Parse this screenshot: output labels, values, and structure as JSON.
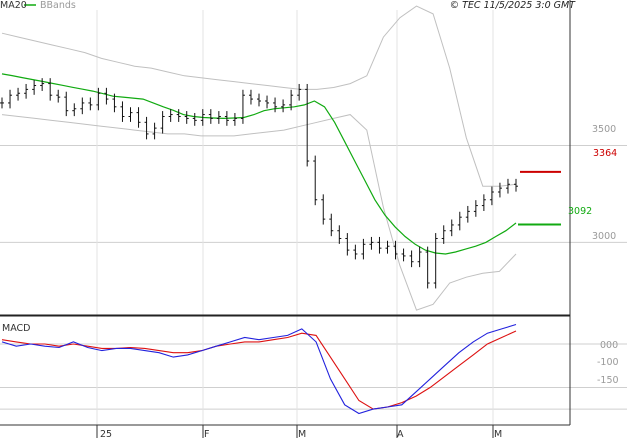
{
  "header": {
    "legend_ma": "MA20",
    "legend_bbands": "BBands",
    "copyright": "© TEC 11/5/2025 3:0 GMT"
  },
  "colors": {
    "price": "#111111",
    "ma20": "#11aa11",
    "bbands": "#c0c0c0",
    "macd": "#2222dd",
    "signal": "#dd1111",
    "resistance": "#cc0000",
    "support": "#11aa11",
    "grid": "#cfcfcf"
  },
  "chart_data": [
    {
      "type": "line",
      "panel": "price",
      "x_labels": [
        "25",
        "F",
        "M",
        "A",
        "M"
      ],
      "yticks": [
        "3500",
        "3000"
      ],
      "ylim": [
        2630,
        4200
      ],
      "series": [
        {
          "name": "MA20",
          "values": [
            3870,
            3861,
            3851,
            3841,
            3831,
            3821,
            3811,
            3801,
            3791,
            3781,
            3768,
            3755,
            3750,
            3745,
            3740,
            3720,
            3700,
            3682,
            3660,
            3650,
            3645,
            3642,
            3640,
            3642,
            3645,
            3660,
            3680,
            3690,
            3695,
            3700,
            3710,
            3730,
            3700,
            3620,
            3520,
            3420,
            3320,
            3220,
            3140,
            3080,
            3030,
            2990,
            2960,
            2945,
            2940,
            2950,
            2965,
            2980,
            3000,
            3030,
            3060,
            3100
          ]
        },
        {
          "name": "Close",
          "values": [
            3720,
            3760,
            3770,
            3790,
            3810,
            3820,
            3760,
            3750,
            3680,
            3690,
            3720,
            3710,
            3770,
            3740,
            3700,
            3650,
            3670,
            3620,
            3560,
            3590,
            3650,
            3660,
            3650,
            3640,
            3630,
            3660,
            3640,
            3650,
            3630,
            3640,
            3760,
            3740,
            3730,
            3720,
            3700,
            3710,
            3760,
            3790,
            3420,
            3220,
            3120,
            3060,
            3020,
            2960,
            2940,
            2990,
            3000,
            2970,
            2980,
            2940,
            2930,
            2900,
            2950,
            2790,
            3020,
            3060,
            3090,
            3130,
            3160,
            3190,
            3220,
            3260,
            3280,
            3300,
            3290
          ]
        },
        {
          "name": "Upper band",
          "values": [
            4080,
            4060,
            4040,
            4020,
            4000,
            3980,
            3950,
            3930,
            3910,
            3900,
            3880,
            3860,
            3850,
            3840,
            3830,
            3820,
            3810,
            3800,
            3790,
            3790,
            3800,
            3820,
            3860,
            4060,
            4160,
            4220,
            4180,
            3900,
            3540,
            3290,
            3290,
            3300
          ]
        },
        {
          "name": "Lower band",
          "values": [
            3660,
            3650,
            3640,
            3630,
            3620,
            3610,
            3600,
            3590,
            3580,
            3570,
            3560,
            3560,
            3550,
            3550,
            3550,
            3560,
            3570,
            3580,
            3600,
            3620,
            3640,
            3660,
            3580,
            3180,
            2880,
            2650,
            2680,
            2790,
            2820,
            2840,
            2850,
            2940
          ]
        }
      ],
      "levels": [
        {
          "label": "3364",
          "value": 3364,
          "color_key": "resistance"
        },
        {
          "label": "3092",
          "value": 3092,
          "color_key": "support"
        }
      ]
    },
    {
      "type": "line",
      "panel": "macd",
      "title": "MACD",
      "yticks": [
        "000",
        "-100",
        "-150"
      ],
      "ylim": [
        -175,
        60
      ],
      "series": [
        {
          "name": "MACD",
          "values": [
            5,
            -5,
            0,
            -5,
            -8,
            5,
            -8,
            -15,
            -10,
            -10,
            -15,
            -20,
            -30,
            -25,
            -15,
            -5,
            5,
            15,
            10,
            15,
            20,
            35,
            5,
            -80,
            -140,
            -160,
            -150,
            -145,
            -140,
            -110,
            -80,
            -50,
            -20,
            5,
            25,
            35,
            45
          ]
        },
        {
          "name": "Signal",
          "values": [
            10,
            5,
            0,
            0,
            -5,
            0,
            -5,
            -10,
            -10,
            -8,
            -10,
            -15,
            -20,
            -20,
            -15,
            -5,
            0,
            5,
            5,
            10,
            15,
            25,
            20,
            -30,
            -80,
            -130,
            -150,
            -145,
            -135,
            -120,
            -100,
            -75,
            -50,
            -25,
            0,
            15,
            30
          ]
        }
      ]
    }
  ]
}
